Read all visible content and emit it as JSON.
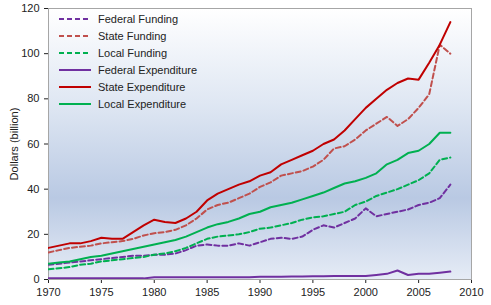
{
  "chart_data": {
    "type": "line",
    "y_label": "Dollars (billion)",
    "x": [
      1970,
      1971,
      1972,
      1973,
      1974,
      1975,
      1976,
      1977,
      1978,
      1979,
      1980,
      1981,
      1982,
      1983,
      1984,
      1985,
      1986,
      1987,
      1988,
      1989,
      1990,
      1991,
      1992,
      1993,
      1994,
      1995,
      1996,
      1997,
      1998,
      1999,
      2000,
      2001,
      2002,
      2003,
      2004,
      2005,
      2006,
      2007,
      2008
    ],
    "xlim": [
      1970,
      2010
    ],
    "xticks": [
      1970,
      1975,
      1980,
      1985,
      1990,
      1995,
      2000,
      2005,
      2010
    ],
    "ylim": [
      0,
      120
    ],
    "yticks": [
      0,
      20,
      40,
      60,
      80,
      100,
      120
    ],
    "grid": false,
    "legend": "top-left",
    "series": [
      {
        "name": "Federal Funding",
        "color": "#7030a0",
        "line_style": "dashed",
        "values": [
          6.5,
          7,
          7.5,
          8,
          8.5,
          9,
          9.5,
          10,
          10.5,
          10.5,
          11,
          11,
          11.5,
          13,
          15,
          15.5,
          15,
          15,
          16,
          15,
          16.5,
          18,
          18.5,
          18,
          19,
          22,
          24,
          23,
          25,
          27,
          31.5,
          28,
          29,
          30,
          31,
          33,
          34,
          36,
          42
        ]
      },
      {
        "name": "State Funding",
        "color": "#c0504d",
        "line_style": "dashed",
        "values": [
          12,
          13,
          14,
          14.5,
          15,
          16,
          16.5,
          17,
          18,
          19.5,
          20.5,
          21,
          22,
          24,
          27,
          31,
          33,
          34,
          36,
          38,
          41,
          43,
          46,
          47,
          48,
          50,
          53,
          58,
          59,
          62,
          66,
          69,
          72,
          68,
          71,
          76,
          82,
          104,
          100
        ]
      },
      {
        "name": "Local Funding",
        "color": "#00b050",
        "line_style": "dashed",
        "values": [
          4.5,
          5,
          5.5,
          6.5,
          7,
          8,
          8.5,
          9,
          9.5,
          10,
          11,
          11.5,
          12.5,
          14,
          16,
          18,
          19,
          19.5,
          20,
          21,
          22.5,
          23,
          24,
          25,
          26.5,
          27.5,
          28,
          29,
          30,
          33,
          34.5,
          37,
          38.5,
          40,
          42,
          44,
          47,
          53,
          54
        ]
      },
      {
        "name": "Federal Expenditure",
        "color": "#7030a0",
        "line_style": "solid",
        "values": [
          0.5,
          0.5,
          0.5,
          0.5,
          0.5,
          0.5,
          0.5,
          0.5,
          0.5,
          0.5,
          1,
          1,
          1,
          1,
          1,
          1,
          1,
          1,
          1,
          1,
          1.2,
          1.2,
          1.2,
          1.3,
          1.3,
          1.4,
          1.4,
          1.5,
          1.5,
          1.5,
          1.5,
          2,
          2.5,
          4,
          2,
          2.5,
          2.5,
          3,
          3.5
        ]
      },
      {
        "name": "State Expenditure",
        "color": "#c00000",
        "line_style": "solid",
        "values": [
          14,
          15,
          16,
          16,
          17,
          18.5,
          18,
          18,
          21,
          24,
          26.5,
          25.5,
          25,
          27,
          30,
          35,
          38,
          40,
          42,
          43.5,
          46,
          47.5,
          51,
          53,
          55,
          57,
          60,
          62,
          66,
          71,
          76,
          80,
          84,
          87,
          89,
          88.5,
          96,
          104,
          114
        ]
      },
      {
        "name": "Local Expenditure",
        "color": "#00b050",
        "line_style": "solid",
        "values": [
          7,
          7.5,
          8,
          9,
          10,
          10.5,
          11.5,
          12.5,
          13.5,
          14.5,
          15.5,
          16.5,
          17.5,
          19,
          21,
          23,
          24.5,
          25.5,
          27,
          29,
          30,
          32,
          33,
          34,
          35.5,
          37,
          38.5,
          40.5,
          42.5,
          43.5,
          45,
          47,
          51,
          53,
          56,
          57,
          60,
          65,
          65
        ]
      }
    ]
  }
}
